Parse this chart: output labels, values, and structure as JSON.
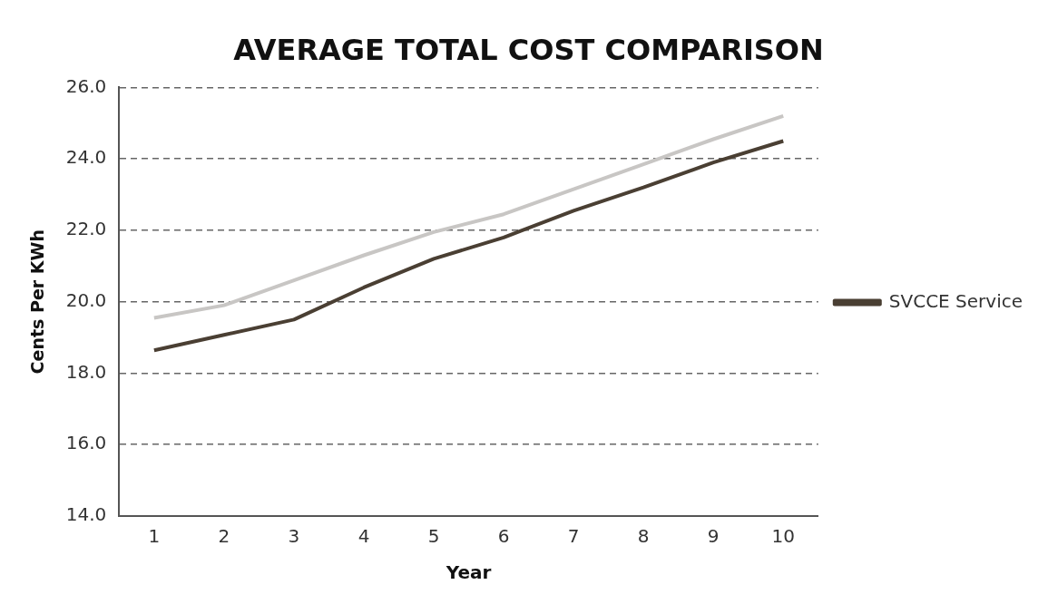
{
  "chart_data": {
    "type": "line",
    "title": "AVERAGE TOTAL COST COMPARISON",
    "xlabel": "Year",
    "ylabel": "Cents Per KWh",
    "categories": [
      "1",
      "2",
      "3",
      "4",
      "5",
      "6",
      "7",
      "8",
      "9",
      "10"
    ],
    "series": [
      {
        "name": "SVCCE Service",
        "color": "#4a3f33",
        "values": [
          18.64,
          19.07,
          19.5,
          20.4,
          21.2,
          21.8,
          22.55,
          23.2,
          23.9,
          24.5
        ]
      },
      {
        "color": "#c8c6c4",
        "values": [
          19.55,
          19.9,
          20.6,
          21.3,
          21.95,
          22.45,
          23.15,
          23.85,
          24.55,
          25.2
        ]
      }
    ],
    "ylim": [
      14,
      26
    ],
    "yticks": [
      {
        "value": 14,
        "label": "14.0"
      },
      {
        "value": 16,
        "label": "16.0"
      },
      {
        "value": 18,
        "label": "18.0"
      },
      {
        "value": 20,
        "label": "20.0"
      },
      {
        "value": 22,
        "label": "22.0"
      },
      {
        "value": 24,
        "label": "24.0"
      },
      {
        "value": 26,
        "label": "26.0"
      }
    ],
    "grid": "y",
    "legend": "right",
    "marker": "none",
    "line_style": "solid"
  }
}
